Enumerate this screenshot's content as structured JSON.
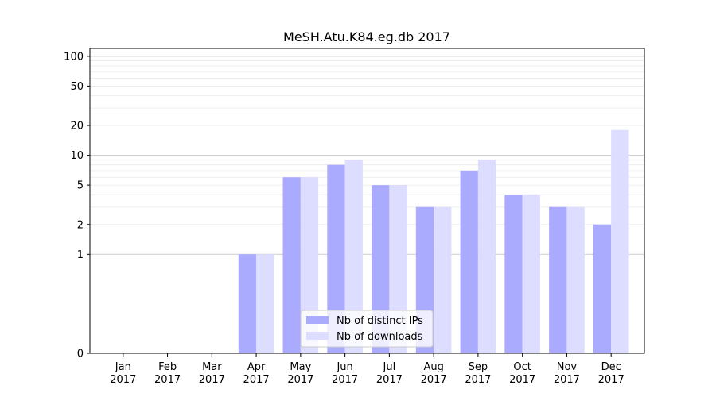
{
  "chart_data": {
    "type": "bar",
    "title": "MeSH.Atu.K84.eg.db 2017",
    "xlabel": "",
    "ylabel": "",
    "y_scale": "symlog",
    "ylim": [
      0,
      120
    ],
    "y_ticks": [
      0,
      1,
      2,
      5,
      10,
      20,
      50,
      100
    ],
    "grid": "horizontal",
    "legend_position": "lower-center",
    "categories": [
      [
        "Jan",
        "2017"
      ],
      [
        "Feb",
        "2017"
      ],
      [
        "Mar",
        "2017"
      ],
      [
        "Apr",
        "2017"
      ],
      [
        "May",
        "2017"
      ],
      [
        "Jun",
        "2017"
      ],
      [
        "Jul",
        "2017"
      ],
      [
        "Aug",
        "2017"
      ],
      [
        "Sep",
        "2017"
      ],
      [
        "Oct",
        "2017"
      ],
      [
        "Nov",
        "2017"
      ],
      [
        "Dec",
        "2017"
      ]
    ],
    "series": [
      {
        "name": "Nb of distinct IPs",
        "color": "#aaaaff",
        "values": [
          0,
          0,
          0,
          1,
          6,
          8,
          5,
          3,
          7,
          4,
          3,
          2
        ]
      },
      {
        "name": "Nb of downloads",
        "color": "#ddddff",
        "values": [
          0,
          0,
          0,
          1,
          6,
          9,
          5,
          3,
          9,
          4,
          3,
          18
        ]
      }
    ]
  }
}
